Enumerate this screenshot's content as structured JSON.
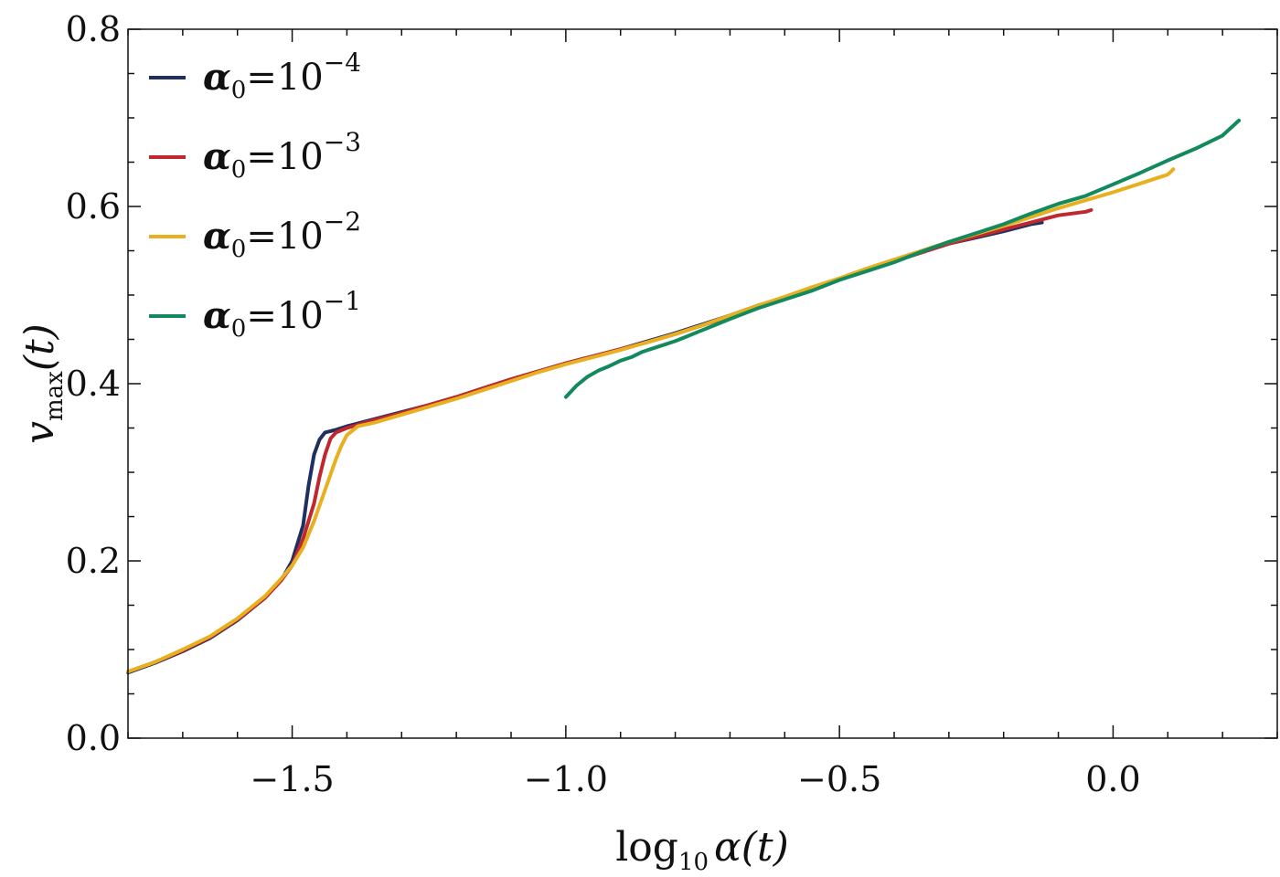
{
  "chart_data": {
    "type": "line",
    "xlabel": {
      "prefix": "log",
      "sub": "10",
      "var": "α(t)"
    },
    "ylabel": {
      "var": "v",
      "sub": "max",
      "suffix": "(t)"
    },
    "xlim": [
      -1.8,
      0.3
    ],
    "ylim": [
      0.0,
      0.8
    ],
    "x_ticks": [
      -1.5,
      -1.0,
      -0.5,
      0.0
    ],
    "x_tick_labels": [
      "−1.5",
      "−1.0",
      "−0.5",
      "0.0"
    ],
    "x_minor_step": 0.1,
    "y_ticks": [
      0.0,
      0.2,
      0.4,
      0.6,
      0.8
    ],
    "y_tick_labels": [
      "0.0",
      "0.2",
      "0.4",
      "0.6",
      "0.8"
    ],
    "y_minor_step": 0.05,
    "legend_position": "top-left",
    "series": [
      {
        "name": "α0=10^-4",
        "legend": {
          "sym": "α",
          "sub": "0",
          "eq": "=10",
          "sup": "−4"
        },
        "color": "#1f3060",
        "x": [
          -1.8,
          -1.75,
          -1.7,
          -1.65,
          -1.6,
          -1.55,
          -1.52,
          -1.5,
          -1.48,
          -1.47,
          -1.46,
          -1.45,
          -1.44,
          -1.42,
          -1.4,
          -1.35,
          -1.3,
          -1.25,
          -1.2,
          -1.15,
          -1.1,
          -1.05,
          -1.0,
          -0.95,
          -0.9,
          -0.85,
          -0.8,
          -0.75,
          -0.7,
          -0.65,
          -0.6,
          -0.55,
          -0.5,
          -0.45,
          -0.4,
          -0.35,
          -0.3,
          -0.25,
          -0.2,
          -0.15,
          -0.13
        ],
        "y": [
          0.074,
          0.085,
          0.098,
          0.113,
          0.133,
          0.158,
          0.178,
          0.2,
          0.24,
          0.285,
          0.32,
          0.337,
          0.345,
          0.348,
          0.352,
          0.36,
          0.368,
          0.376,
          0.385,
          0.395,
          0.405,
          0.414,
          0.423,
          0.431,
          0.439,
          0.448,
          0.457,
          0.467,
          0.477,
          0.488,
          0.497,
          0.508,
          0.518,
          0.528,
          0.538,
          0.548,
          0.558,
          0.565,
          0.572,
          0.58,
          0.582
        ]
      },
      {
        "name": "α0=10^-3",
        "legend": {
          "sym": "α",
          "sub": "0",
          "eq": "=10",
          "sup": "−3"
        },
        "color": "#c0282d",
        "x": [
          -1.8,
          -1.75,
          -1.7,
          -1.65,
          -1.6,
          -1.55,
          -1.52,
          -1.5,
          -1.48,
          -1.46,
          -1.45,
          -1.44,
          -1.43,
          -1.42,
          -1.4,
          -1.35,
          -1.3,
          -1.25,
          -1.2,
          -1.15,
          -1.1,
          -1.05,
          -1.0,
          -0.95,
          -0.9,
          -0.85,
          -0.8,
          -0.75,
          -0.7,
          -0.65,
          -0.6,
          -0.55,
          -0.5,
          -0.45,
          -0.4,
          -0.35,
          -0.3,
          -0.25,
          -0.2,
          -0.15,
          -0.1,
          -0.05,
          -0.04
        ],
        "y": [
          0.075,
          0.086,
          0.099,
          0.114,
          0.134,
          0.158,
          0.178,
          0.195,
          0.225,
          0.265,
          0.295,
          0.32,
          0.338,
          0.345,
          0.35,
          0.359,
          0.367,
          0.376,
          0.385,
          0.395,
          0.405,
          0.414,
          0.423,
          0.431,
          0.439,
          0.447,
          0.456,
          0.466,
          0.476,
          0.487,
          0.497,
          0.508,
          0.518,
          0.528,
          0.538,
          0.548,
          0.558,
          0.566,
          0.574,
          0.582,
          0.59,
          0.594,
          0.596
        ]
      },
      {
        "name": "α0=10^-2",
        "legend": {
          "sym": "α",
          "sub": "0",
          "eq": "=10",
          "sup": "−2"
        },
        "color": "#e8b020",
        "x": [
          -1.8,
          -1.75,
          -1.7,
          -1.65,
          -1.6,
          -1.55,
          -1.52,
          -1.5,
          -1.48,
          -1.46,
          -1.44,
          -1.42,
          -1.41,
          -1.4,
          -1.38,
          -1.35,
          -1.3,
          -1.25,
          -1.2,
          -1.15,
          -1.1,
          -1.05,
          -1.0,
          -0.95,
          -0.9,
          -0.85,
          -0.8,
          -0.75,
          -0.7,
          -0.65,
          -0.6,
          -0.55,
          -0.5,
          -0.45,
          -0.4,
          -0.35,
          -0.3,
          -0.25,
          -0.2,
          -0.15,
          -0.1,
          -0.05,
          0.0,
          0.05,
          0.1,
          0.11
        ],
        "y": [
          0.075,
          0.086,
          0.1,
          0.115,
          0.135,
          0.16,
          0.18,
          0.195,
          0.215,
          0.245,
          0.28,
          0.315,
          0.33,
          0.342,
          0.352,
          0.356,
          0.365,
          0.374,
          0.383,
          0.393,
          0.403,
          0.413,
          0.422,
          0.43,
          0.438,
          0.447,
          0.456,
          0.466,
          0.477,
          0.488,
          0.498,
          0.509,
          0.519,
          0.53,
          0.54,
          0.55,
          0.56,
          0.569,
          0.578,
          0.588,
          0.598,
          0.607,
          0.616,
          0.626,
          0.636,
          0.642
        ]
      },
      {
        "name": "α0=10^-1",
        "legend": {
          "sym": "α",
          "sub": "0",
          "eq": "=10",
          "sup": "−1"
        },
        "color": "#138a5e",
        "x": [
          -1.0,
          -0.98,
          -0.96,
          -0.94,
          -0.92,
          -0.9,
          -0.88,
          -0.86,
          -0.84,
          -0.82,
          -0.8,
          -0.78,
          -0.76,
          -0.74,
          -0.72,
          -0.7,
          -0.65,
          -0.6,
          -0.55,
          -0.5,
          -0.45,
          -0.4,
          -0.35,
          -0.3,
          -0.25,
          -0.2,
          -0.15,
          -0.1,
          -0.05,
          0.0,
          0.05,
          0.1,
          0.15,
          0.2,
          0.23
        ],
        "y": [
          0.385,
          0.398,
          0.408,
          0.415,
          0.42,
          0.426,
          0.43,
          0.436,
          0.44,
          0.444,
          0.448,
          0.453,
          0.458,
          0.463,
          0.468,
          0.473,
          0.485,
          0.495,
          0.505,
          0.517,
          0.527,
          0.537,
          0.549,
          0.56,
          0.57,
          0.58,
          0.592,
          0.603,
          0.612,
          0.625,
          0.638,
          0.652,
          0.665,
          0.68,
          0.697
        ]
      }
    ]
  }
}
